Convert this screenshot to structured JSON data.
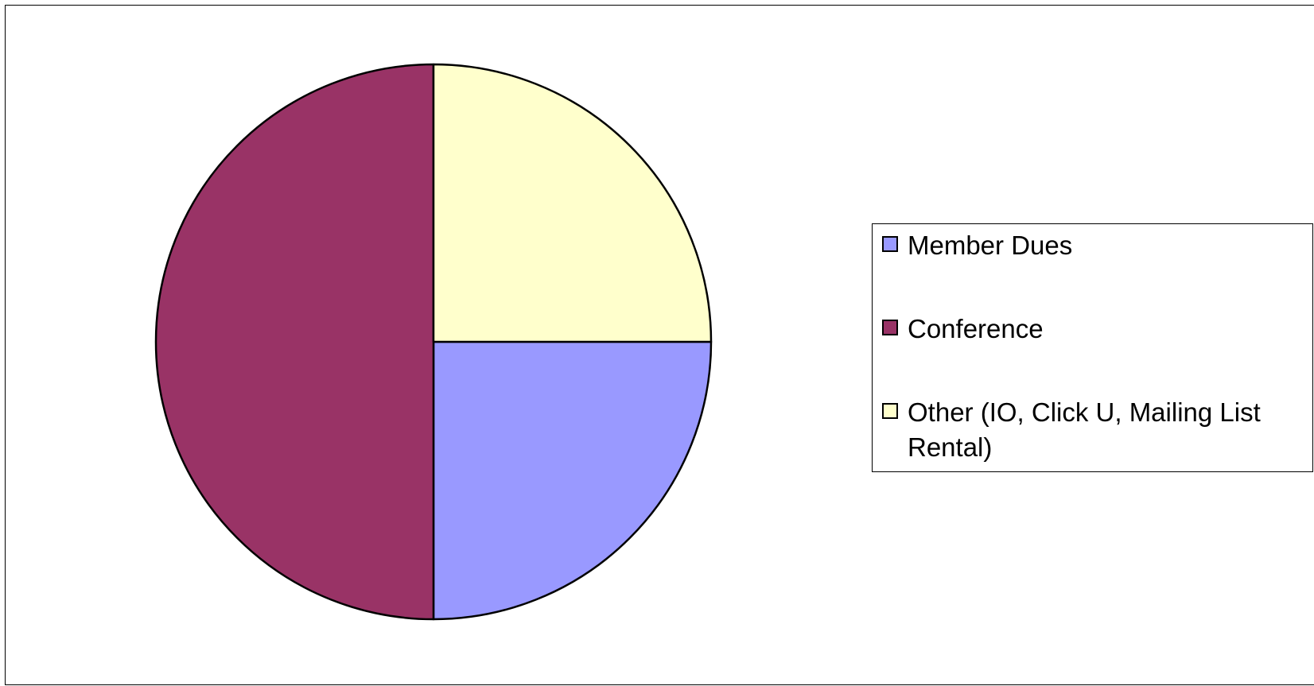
{
  "chart_data": {
    "type": "pie",
    "title": "",
    "slices": [
      {
        "label": "Member Dues",
        "value": 25,
        "color": "#9999FF"
      },
      {
        "label": "Conference",
        "value": 50,
        "color": "#993366"
      },
      {
        "label": "Other (IO, Click U, Mailing List Rental)",
        "value": 25,
        "color": "#FFFFCC"
      }
    ],
    "start_angle_deg": 0,
    "direction": "clockwise",
    "legend_position": "right"
  }
}
